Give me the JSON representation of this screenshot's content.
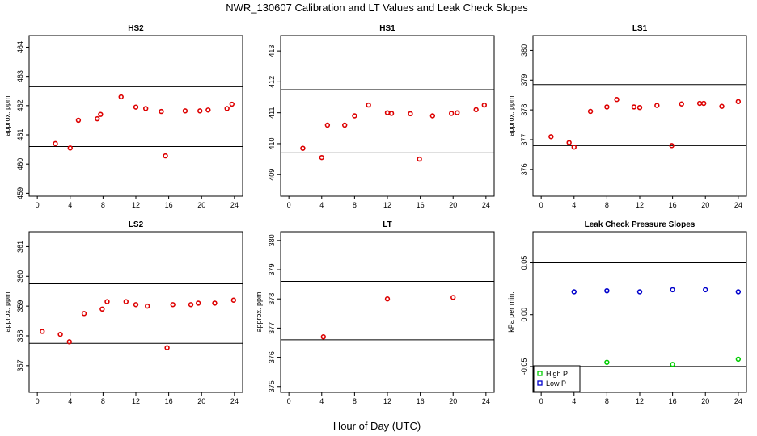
{
  "title": "NWR_130607  Calibration and LT Values and Leak Check Slopes",
  "xlabel": "Hour of Day (UTC)",
  "chart_data": [
    {
      "type": "scatter",
      "title": "HS2",
      "ylabel": "approx. ppm",
      "xlim": [
        -1,
        25
      ],
      "ylim": [
        458.9,
        464.4
      ],
      "xticks": [
        0,
        4,
        8,
        12,
        16,
        20,
        24
      ],
      "yticks": [
        459,
        460,
        461,
        462,
        463,
        464
      ],
      "hlines": [
        462.65,
        460.6
      ],
      "series": [
        {
          "color": "#dd0000",
          "points": [
            [
              2.2,
              460.7
            ],
            [
              4.0,
              460.55
            ],
            [
              5.0,
              461.5
            ],
            [
              7.3,
              461.55
            ],
            [
              7.7,
              461.7
            ],
            [
              10.2,
              462.3
            ],
            [
              12.0,
              461.95
            ],
            [
              13.2,
              461.9
            ],
            [
              15.1,
              461.8
            ],
            [
              15.6,
              460.28
            ],
            [
              18.0,
              461.82
            ],
            [
              19.8,
              461.82
            ],
            [
              20.8,
              461.85
            ],
            [
              23.1,
              461.9
            ],
            [
              23.7,
              462.05
            ]
          ]
        }
      ]
    },
    {
      "type": "scatter",
      "title": "HS1",
      "ylabel": "",
      "xlim": [
        -1,
        25
      ],
      "ylim": [
        408.3,
        413.5
      ],
      "xticks": [
        0,
        4,
        8,
        12,
        16,
        20,
        24
      ],
      "yticks": [
        409,
        410,
        411,
        412,
        413
      ],
      "hlines": [
        411.75,
        409.7
      ],
      "series": [
        {
          "color": "#dd0000",
          "points": [
            [
              1.7,
              409.85
            ],
            [
              4.0,
              409.55
            ],
            [
              4.7,
              410.6
            ],
            [
              6.8,
              410.6
            ],
            [
              8.0,
              410.9
            ],
            [
              9.7,
              411.25
            ],
            [
              12.0,
              411.0
            ],
            [
              12.5,
              410.98
            ],
            [
              14.8,
              410.97
            ],
            [
              15.9,
              409.5
            ],
            [
              17.5,
              410.9
            ],
            [
              19.8,
              410.98
            ],
            [
              20.5,
              411.0
            ],
            [
              22.8,
              411.1
            ],
            [
              23.8,
              411.25
            ]
          ]
        }
      ]
    },
    {
      "type": "scatter",
      "title": "LS1",
      "ylabel": "approx. ppm",
      "xlim": [
        -1,
        25
      ],
      "ylim": [
        375.1,
        380.5
      ],
      "xticks": [
        0,
        4,
        8,
        12,
        16,
        20,
        24
      ],
      "yticks": [
        376,
        377,
        378,
        379,
        380
      ],
      "hlines": [
        378.85,
        376.8
      ],
      "series": [
        {
          "color": "#dd0000",
          "points": [
            [
              1.2,
              377.1
            ],
            [
              3.4,
              376.9
            ],
            [
              4.0,
              376.75
            ],
            [
              6.0,
              377.95
            ],
            [
              8.0,
              378.1
            ],
            [
              9.2,
              378.35
            ],
            [
              11.3,
              378.1
            ],
            [
              12.0,
              378.08
            ],
            [
              14.1,
              378.15
            ],
            [
              15.9,
              376.8
            ],
            [
              17.1,
              378.2
            ],
            [
              19.3,
              378.22
            ],
            [
              19.8,
              378.22
            ],
            [
              22.0,
              378.12
            ],
            [
              24.0,
              378.28
            ]
          ]
        }
      ]
    },
    {
      "type": "scatter",
      "title": "LS2",
      "ylabel": "approx. ppm",
      "xlim": [
        -1,
        25
      ],
      "ylim": [
        356.1,
        361.5
      ],
      "xticks": [
        0,
        4,
        8,
        12,
        16,
        20,
        24
      ],
      "yticks": [
        357,
        358,
        359,
        360,
        361
      ],
      "hlines": [
        359.75,
        357.75
      ],
      "series": [
        {
          "color": "#dd0000",
          "points": [
            [
              0.6,
              358.15
            ],
            [
              2.8,
              358.05
            ],
            [
              3.9,
              357.8
            ],
            [
              5.7,
              358.75
            ],
            [
              7.9,
              358.9
            ],
            [
              8.5,
              359.15
            ],
            [
              10.8,
              359.15
            ],
            [
              12.0,
              359.05
            ],
            [
              13.4,
              359.0
            ],
            [
              15.8,
              357.6
            ],
            [
              16.5,
              359.05
            ],
            [
              18.7,
              359.05
            ],
            [
              19.6,
              359.1
            ],
            [
              21.6,
              359.1
            ],
            [
              23.9,
              359.2
            ]
          ]
        }
      ]
    },
    {
      "type": "scatter",
      "title": "LT",
      "ylabel": "approx. ppm",
      "xlim": [
        -1,
        25
      ],
      "ylim": [
        374.8,
        380.3
      ],
      "xticks": [
        0,
        4,
        8,
        12,
        16,
        20,
        24
      ],
      "yticks": [
        375,
        376,
        377,
        378,
        379,
        380
      ],
      "hlines": [
        378.6,
        376.6
      ],
      "series": [
        {
          "color": "#dd0000",
          "points": [
            [
              4.2,
              376.7
            ],
            [
              12.0,
              378.0
            ],
            [
              20.0,
              378.05
            ]
          ]
        }
      ]
    },
    {
      "type": "scatter",
      "title": "Leak Check Pressure Slopes",
      "ylabel": "kPa per min.",
      "xlim": [
        -1,
        25
      ],
      "ylim": [
        -0.075,
        0.08
      ],
      "xticks": [
        0,
        4,
        8,
        12,
        16,
        20,
        24
      ],
      "yticks": [
        -0.05,
        0.0,
        0.05
      ],
      "ytick_labels": [
        "-0.05",
        "0.00",
        "0.05"
      ],
      "hlines": [
        0.05,
        -0.05
      ],
      "legend": "bottom-left",
      "series": [
        {
          "name": "High P",
          "color": "#00cc00",
          "points": [
            [
              8.0,
              -0.046
            ],
            [
              16.0,
              -0.048
            ],
            [
              24.0,
              -0.043
            ]
          ]
        },
        {
          "name": "Low P",
          "color": "#0000cc",
          "points": [
            [
              4.0,
              0.022
            ],
            [
              8.0,
              0.023
            ],
            [
              12.0,
              0.022
            ],
            [
              16.0,
              0.024
            ],
            [
              20.0,
              0.024
            ],
            [
              24.0,
              0.022
            ]
          ]
        }
      ]
    }
  ]
}
